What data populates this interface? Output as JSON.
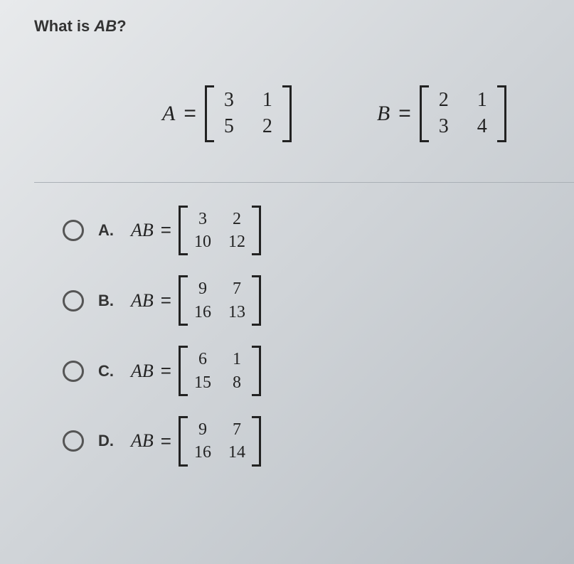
{
  "question": {
    "prefix": "What is ",
    "var": "AB",
    "suffix": "?"
  },
  "given": {
    "A": {
      "lhs": "A",
      "eq": "=",
      "m": [
        [
          "3",
          "1"
        ],
        [
          "5",
          "2"
        ]
      ]
    },
    "B": {
      "lhs": "B",
      "eq": "=",
      "m": [
        [
          "2",
          "1"
        ],
        [
          "3",
          "4"
        ]
      ]
    }
  },
  "options": [
    {
      "key": "A.",
      "lhs": "AB",
      "eq": "=",
      "m": [
        [
          "3",
          "2"
        ],
        [
          "10",
          "12"
        ]
      ]
    },
    {
      "key": "B.",
      "lhs": "AB",
      "eq": "=",
      "m": [
        [
          "9",
          "7"
        ],
        [
          "16",
          "13"
        ]
      ]
    },
    {
      "key": "C.",
      "lhs": "AB",
      "eq": "=",
      "m": [
        [
          "6",
          "1"
        ],
        [
          "15",
          "8"
        ]
      ]
    },
    {
      "key": "D.",
      "lhs": "AB",
      "eq": "=",
      "m": [
        [
          "9",
          "7"
        ],
        [
          "16",
          "14"
        ]
      ]
    }
  ],
  "style": {
    "title_fontsize": 22,
    "eq_fontsize": 30,
    "option_fontsize": 26,
    "matrix_fontsize": 28,
    "text_color": "#222",
    "bracket_thickness": 3,
    "radio_border": "#555",
    "divider_color": "#aab0b6",
    "background_gradient": [
      "#e8eaec",
      "#d0d4d8",
      "#b8bec4"
    ]
  }
}
